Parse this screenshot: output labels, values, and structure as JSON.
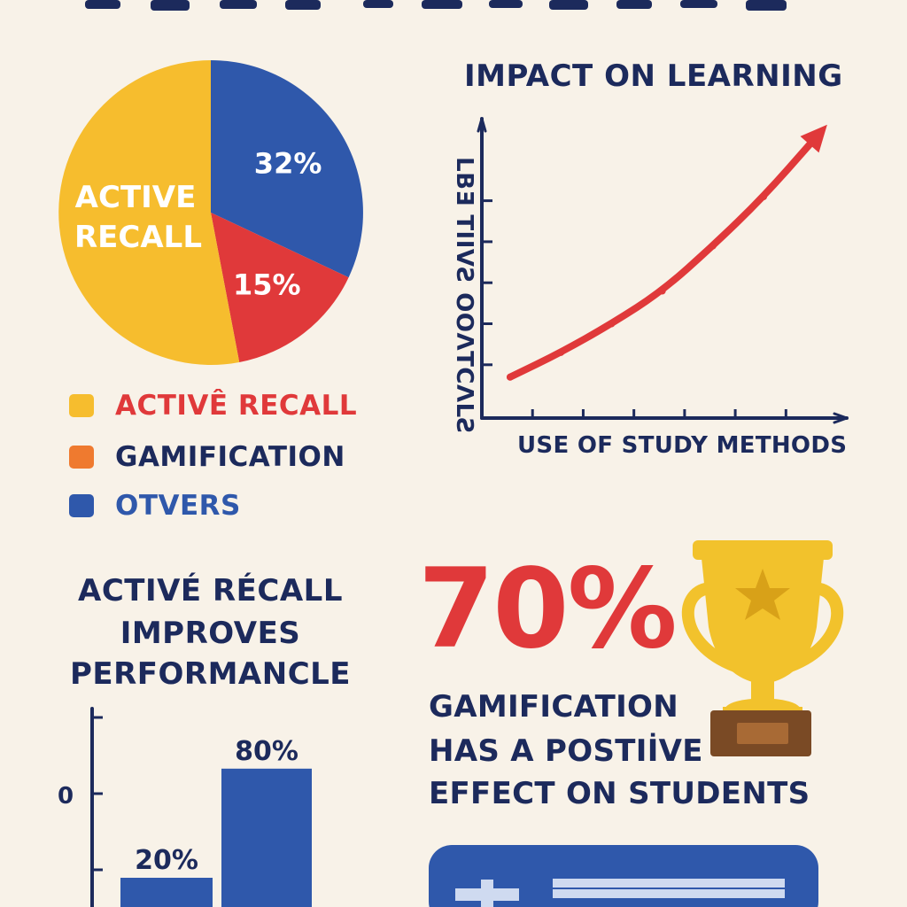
{
  "colors": {
    "background": "#f8f2e8",
    "navy": "#1c2a5c",
    "yellow": "#f6bd2e",
    "red": "#e0393a",
    "blue": "#2f58ab",
    "orange": "#ef7a2f",
    "trophy_gold": "#f2c22c",
    "trophy_base": "#7a4a25"
  },
  "legend": {
    "items": [
      {
        "label": "ACTIVÊ RECALL",
        "color": "#f6bd2e",
        "label_color": "#e0393a"
      },
      {
        "label": "GAMIFICATION",
        "color": "#ef7a2f",
        "label_color": "#1c2a5c"
      },
      {
        "label": "OTVERS",
        "color": "#2f58ab",
        "label_color": "#2f58ab"
      }
    ]
  },
  "headline": {
    "lines": [
      "ACTIVÉ RÉCALL",
      "IMPROVES",
      "PERFORMANCLE"
    ]
  },
  "stat": {
    "value": "70%",
    "lines": [
      "GAMIFICATION",
      "HAS A POSTIİVE",
      "EFFECT ON STUDENTS"
    ]
  },
  "trophy": {
    "icon": "trophy-icon"
  },
  "chart_data": [
    {
      "type": "pie",
      "slices": [
        {
          "label": "ACTIVE RECALL",
          "value": 53,
          "value_label": "",
          "color": "#f6bd2e"
        },
        {
          "label": "",
          "value": 32,
          "value_label": "32%",
          "color": "#2f58ab"
        },
        {
          "label": "",
          "value": 15,
          "value_label": "15%",
          "color": "#e0393a"
        }
      ],
      "center_label_lines": [
        "ACTIVE",
        "RECALL"
      ]
    },
    {
      "type": "line",
      "title": "IMPACT ON LEARNING",
      "xlabel": "USE OF STUDY METHODS",
      "ylabel": "LBƎ TIIVƧ ΟΟΛTCΛLƧ",
      "x": [
        0,
        1,
        2,
        3,
        4,
        5,
        6
      ],
      "y": [
        1.0,
        1.6,
        2.3,
        3.1,
        4.2,
        5.4,
        6.8
      ],
      "xlim": [
        0,
        7.2
      ],
      "ylim": [
        0,
        7.3
      ],
      "x_ticks": [
        1,
        2,
        3,
        4,
        5,
        6
      ],
      "y_ticks": [
        1.3,
        2.3,
        3.3,
        4.3,
        5.3
      ],
      "arrow_end": true,
      "line_color": "#e0393a"
    },
    {
      "type": "bar",
      "categories": [
        "",
        ""
      ],
      "values": [
        20,
        80
      ],
      "value_labels": [
        "20%",
        "80%"
      ],
      "y_tick_label": "0",
      "ylim": [
        0,
        115
      ],
      "color": "#2f58ab"
    }
  ]
}
